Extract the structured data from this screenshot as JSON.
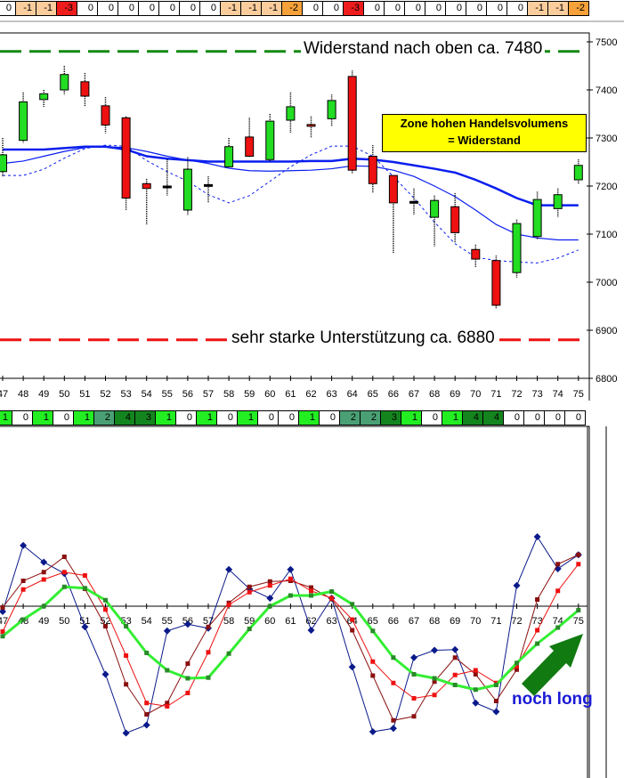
{
  "top_strip": {
    "values": [
      0,
      -1,
      -1,
      -3,
      0,
      0,
      0,
      0,
      0,
      0,
      0,
      -1,
      -1,
      -1,
      -2,
      0,
      0,
      -3,
      0,
      0,
      0,
      0,
      0,
      0,
      0,
      0,
      -1,
      -1,
      -2
    ],
    "colors": {
      "0": "#ffffff",
      "-1": "#fbcd9d",
      "-2": "#f7a13a",
      "-3": "#ee1c1c"
    }
  },
  "bottom_strip": {
    "values": [
      1,
      0,
      1,
      0,
      1,
      2,
      4,
      3,
      1,
      0,
      1,
      0,
      1,
      0,
      0,
      1,
      0,
      2,
      2,
      3,
      1,
      0,
      1,
      4,
      4,
      0,
      0,
      0,
      0
    ],
    "colors": {
      "0": "#ffffff",
      "1": "#22ee22",
      "2": "#4aa074",
      "3": "#14851e",
      "4": "#14851e"
    }
  },
  "annotations": {
    "resistance_label": "Widerstand nach oben ca. 7480",
    "support_label": "sehr starke Unterstützung ca. 6880",
    "zone_box_line1": "Zone hohen Handelsvolumens",
    "zone_box_line2": "= Widerstand",
    "signal_label": "noch long"
  },
  "colors": {
    "bull_candle": "#22dd22",
    "bear_candle": "#ee1111",
    "ma_line": "#0a1eee",
    "resistance_line": "#138a13",
    "support_line": "#ee1111",
    "zone_box_bg": "#ffff00",
    "arrow": "#117a11",
    "signal_text": "#1a1ad6"
  },
  "chart_data": [
    {
      "type": "candlestick",
      "title": "",
      "xlabel": "",
      "ylabel": "",
      "x": [
        47,
        48,
        49,
        50,
        51,
        52,
        53,
        54,
        55,
        56,
        57,
        58,
        59,
        60,
        61,
        62,
        63,
        64,
        65,
        66,
        67,
        68,
        69,
        70,
        71,
        72,
        73,
        74,
        75
      ],
      "ylim": [
        6800,
        7500
      ],
      "yticks": [
        6800,
        6900,
        7000,
        7100,
        7200,
        7300,
        7400,
        7500
      ],
      "candles": [
        {
          "x": 47,
          "open": 7230,
          "close": 7265,
          "high": 7300,
          "low": 7220
        },
        {
          "x": 48,
          "open": 7295,
          "close": 7375,
          "high": 7395,
          "low": 7290
        },
        {
          "x": 49,
          "open": 7380,
          "close": 7392,
          "high": 7400,
          "low": 7365
        },
        {
          "x": 50,
          "open": 7400,
          "close": 7432,
          "high": 7450,
          "low": 7390
        },
        {
          "x": 51,
          "open": 7417,
          "close": 7387,
          "high": 7435,
          "low": 7365
        },
        {
          "x": 52,
          "open": 7367,
          "close": 7327,
          "high": 7385,
          "low": 7310
        },
        {
          "x": 53,
          "open": 7342,
          "close": 7175,
          "high": 7345,
          "low": 7150
        },
        {
          "x": 54,
          "open": 7205,
          "close": 7195,
          "high": 7215,
          "low": 7120
        },
        {
          "x": 55,
          "open": 7200,
          "close": 7200,
          "high": 7255,
          "low": 7180
        },
        {
          "x": 56,
          "open": 7150,
          "close": 7235,
          "high": 7260,
          "low": 7140
        },
        {
          "x": 57,
          "open": 7203,
          "close": 7203,
          "high": 7220,
          "low": 7165
        },
        {
          "x": 58,
          "open": 7240,
          "close": 7282,
          "high": 7300,
          "low": 7238
        },
        {
          "x": 59,
          "open": 7302,
          "close": 7262,
          "high": 7342,
          "low": 7260
        },
        {
          "x": 60,
          "open": 7255,
          "close": 7335,
          "high": 7350,
          "low": 7252
        },
        {
          "x": 61,
          "open": 7337,
          "close": 7365,
          "high": 7395,
          "low": 7310
        },
        {
          "x": 62,
          "open": 7328,
          "close": 7325,
          "high": 7345,
          "low": 7300
        },
        {
          "x": 63,
          "open": 7340,
          "close": 7378,
          "high": 7390,
          "low": 7325
        },
        {
          "x": 64,
          "open": 7428,
          "close": 7233,
          "high": 7440,
          "low": 7225
        },
        {
          "x": 65,
          "open": 7262,
          "close": 7205,
          "high": 7285,
          "low": 7185
        },
        {
          "x": 66,
          "open": 7222,
          "close": 7165,
          "high": 7222,
          "low": 7060
        },
        {
          "x": 67,
          "open": 7168,
          "close": 7168,
          "high": 7195,
          "low": 7140
        },
        {
          "x": 68,
          "open": 7135,
          "close": 7170,
          "high": 7180,
          "low": 7075
        },
        {
          "x": 69,
          "open": 7157,
          "close": 7103,
          "high": 7185,
          "low": 7083
        },
        {
          "x": 70,
          "open": 7068,
          "close": 7048,
          "high": 7078,
          "low": 7030
        },
        {
          "x": 71,
          "open": 7045,
          "close": 6952,
          "high": 7055,
          "low": 6945
        },
        {
          "x": 72,
          "open": 7020,
          "close": 7122,
          "high": 7130,
          "low": 7010
        },
        {
          "x": 73,
          "open": 7095,
          "close": 7172,
          "high": 7188,
          "low": 7088
        },
        {
          "x": 74,
          "open": 7153,
          "close": 7182,
          "high": 7195,
          "low": 7135
        },
        {
          "x": 75,
          "open": 7213,
          "close": 7243,
          "high": 7255,
          "low": 7205
        }
      ],
      "series": [
        {
          "name": "MA thick",
          "style": "solid-thick",
          "values": [
            7276,
            7276,
            7276,
            7279,
            7282,
            7282,
            7276,
            7262,
            7257,
            7254,
            7251,
            7251,
            7251,
            7251,
            7251,
            7252,
            7252,
            7257,
            7255,
            7250,
            7243,
            7236,
            7228,
            7213,
            7195,
            7175,
            7160,
            7160,
            7160
          ]
        },
        {
          "name": "MA thin",
          "style": "solid-thin",
          "values": [
            7247,
            7252,
            7262,
            7272,
            7280,
            7282,
            7280,
            7272,
            7262,
            7254,
            7247,
            7237,
            7232,
            7231,
            7232,
            7233,
            7236,
            7242,
            7241,
            7233,
            7220,
            7200,
            7178,
            7150,
            7120,
            7100,
            7092,
            7088,
            7088
          ]
        },
        {
          "name": "MA dotted",
          "style": "dotted",
          "values": [
            7222,
            7222,
            7235,
            7258,
            7278,
            7285,
            7283,
            7253,
            7230,
            7210,
            7182,
            7165,
            7180,
            7210,
            7240,
            7265,
            7283,
            7283,
            7262,
            7220,
            7175,
            7125,
            7080,
            7052,
            7045,
            7042,
            7040,
            7050,
            7067
          ]
        }
      ],
      "horizontal_lines": [
        {
          "label": "Widerstand nach oben ca. 7480",
          "value": 7480,
          "color": "#138a13",
          "style": "dashed"
        },
        {
          "label": "sehr starke Unterstützung ca. 6880",
          "value": 6880,
          "color": "#ee1111",
          "style": "dashed"
        }
      ],
      "annotations": [
        "Zone hohen Handelsvolumens = Widerstand"
      ],
      "grid": false,
      "legend": "none"
    },
    {
      "type": "line",
      "title": "",
      "xlabel": "",
      "ylabel": "",
      "x": [
        47,
        48,
        49,
        50,
        51,
        52,
        53,
        54,
        55,
        56,
        57,
        58,
        59,
        60,
        61,
        62,
        63,
        64,
        65,
        66,
        67,
        68,
        69,
        70,
        71,
        72,
        73,
        74,
        75
      ],
      "zero_line": true,
      "ylim": [
        -1,
        1
      ],
      "series": [
        {
          "name": "navy diamonds",
          "color": "#0a1a8a",
          "marker": "diamond",
          "values": [
            -0.08,
            0.91,
            0.66,
            0.49,
            -0.31,
            -1.02,
            -1.9,
            -1.78,
            -0.37,
            -0.27,
            -0.33,
            0.55,
            0.26,
            0.12,
            0.55,
            -0.36,
            0.12,
            -0.91,
            -1.88,
            -1.83,
            -0.77,
            -0.66,
            -0.65,
            -1.45,
            -1.58,
            0.31,
            1.04,
            0.56,
            0.77
          ]
        },
        {
          "name": "dark red squares",
          "color": "#8a1010",
          "marker": "square",
          "values": [
            -0.02,
            0.38,
            0.51,
            0.74,
            0.26,
            -0.3,
            -1.17,
            -1.62,
            -1.45,
            -0.86,
            -0.31,
            0.05,
            0.29,
            0.37,
            0.38,
            0.28,
            0.11,
            -0.36,
            -1.04,
            -1.71,
            -1.65,
            -1.13,
            -0.77,
            -1.02,
            -1.42,
            -0.95,
            0.1,
            0.63,
            0.77
          ]
        },
        {
          "name": "red squares",
          "color": "#ee1111",
          "marker": "square",
          "values": [
            -0.38,
            0.25,
            0.4,
            0.51,
            0.46,
            -0.05,
            -0.74,
            -1.45,
            -1.5,
            -1.3,
            -0.69,
            0.02,
            0.21,
            0.31,
            0.41,
            0.23,
            0.12,
            -0.2,
            -0.83,
            -1.15,
            -1.38,
            -1.33,
            -1.03,
            -0.96,
            -1.15,
            -0.9,
            -0.36,
            0.23,
            0.63
          ]
        },
        {
          "name": "green line",
          "color": "#33ee33",
          "marker": "square",
          "width": "thick",
          "values": [
            -0.45,
            -0.2,
            0.0,
            0.29,
            0.27,
            0.09,
            -0.3,
            -0.7,
            -0.96,
            -1.08,
            -1.07,
            -0.71,
            -0.34,
            0.0,
            0.16,
            0.16,
            0.22,
            0.03,
            -0.37,
            -0.77,
            -1.02,
            -1.08,
            -1.18,
            -1.25,
            -1.18,
            -0.85,
            -0.56,
            -0.32,
            -0.06
          ]
        }
      ],
      "annotations": [
        "noch long"
      ],
      "grid": false,
      "legend": "none"
    }
  ]
}
